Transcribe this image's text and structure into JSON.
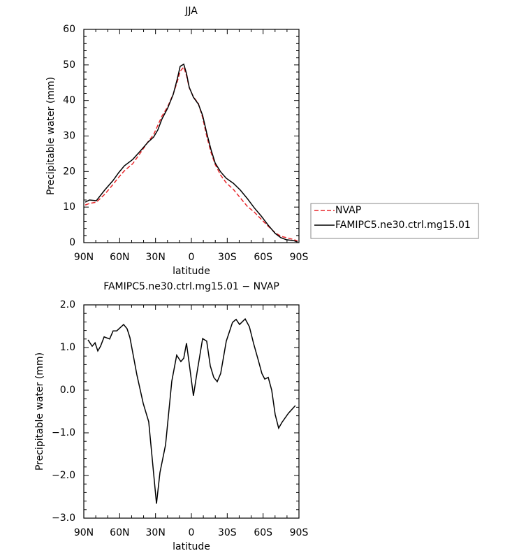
{
  "chart_data": [
    {
      "type": "line",
      "title": "JJA",
      "xlabel": "latitude",
      "ylabel": "Precipitable water (mm)",
      "x": [
        88.8,
        85.3,
        79.5,
        72.5,
        65.5,
        60.8,
        56.1,
        49.1,
        43.2,
        36.2,
        31.6,
        28.1,
        24.6,
        19.9,
        15.2,
        11.7,
        9.4,
        6.4,
        4.1,
        1.8,
        -1.7,
        -5.8,
        -9.4,
        -12.8,
        -16.4,
        -19.9,
        -24.5,
        -29.2,
        -35.1,
        -40.9,
        -46.8,
        -52.6,
        -58.4,
        -64.3,
        -70.1,
        -74.8,
        -79.5,
        -85.3,
        -88.8
      ],
      "series": [
        {
          "name": "NVAP",
          "color": "#e8262a",
          "dash": "dashed",
          "values": [
            10.6,
            11.0,
            11.4,
            13.6,
            16.4,
            18.4,
            20.2,
            22.2,
            25.0,
            28.4,
            30.4,
            33.0,
            35.6,
            38.2,
            41.8,
            45.4,
            48.2,
            49.4,
            47.0,
            43.6,
            41.0,
            39.2,
            35.2,
            30.0,
            25.4,
            22.0,
            19.0,
            16.8,
            15.0,
            12.6,
            10.2,
            8.6,
            6.6,
            4.6,
            2.8,
            1.8,
            1.4,
            0.9,
            0.5
          ]
        },
        {
          "name": "FAMIPC5.ne30.ctrl.mg15.01",
          "color": "#000000",
          "dash": "solid",
          "values": [
            11.4,
            12.0,
            11.8,
            14.8,
            17.5,
            19.7,
            21.6,
            23.4,
            25.6,
            28.3,
            29.7,
            31.7,
            34.8,
            37.8,
            41.7,
            46.2,
            49.6,
            50.2,
            47.6,
            43.7,
            40.9,
            39.0,
            35.8,
            30.9,
            26.2,
            22.4,
            19.9,
            18.1,
            16.7,
            14.8,
            12.4,
            9.8,
            7.5,
            4.9,
            2.6,
            1.4,
            0.8,
            0.6,
            0.2
          ]
        }
      ],
      "xlim": [
        90,
        -90
      ],
      "xticks": [
        {
          "value": 90,
          "label": "90N"
        },
        {
          "value": 60,
          "label": "60N"
        },
        {
          "value": 30,
          "label": "30N"
        },
        0,
        {
          "value": -30,
          "label": "30S"
        },
        {
          "value": -60,
          "label": "60S"
        },
        {
          "value": -90,
          "label": "90S"
        }
      ],
      "ylim": [
        0,
        60
      ],
      "yticks": [
        0,
        10,
        20,
        30,
        40,
        50,
        60
      ],
      "grid": false,
      "legend": "outside right"
    },
    {
      "type": "line",
      "title": "FAMIPC5.ne30.ctrl.mg15.01  −  NVAP",
      "xlabel": "latitude",
      "ylabel": "Precipitable water (mm)",
      "x": [
        86.5,
        83,
        80.6,
        78.3,
        76,
        73,
        68.4,
        65.5,
        62.5,
        56.7,
        53.8,
        51.4,
        45.6,
        40.3,
        35.7,
        29.2,
        26.3,
        21.6,
        16.4,
        12.3,
        8.8,
        6.4,
        4.1,
        1.8,
        -1.7,
        -4.7,
        -9.4,
        -12.8,
        -15.8,
        -18.7,
        -21.6,
        -24.5,
        -29.2,
        -34.4,
        -37.4,
        -40.3,
        -45,
        -48.5,
        -52,
        -56,
        -59,
        -61.4,
        -64.3,
        -67.2,
        -70.1,
        -73,
        -75.9,
        -81.2,
        -87
      ],
      "series": [
        {
          "name": "FAMIPC5.ne30.ctrl.mg15.01 - NVAP",
          "color": "#000000",
          "dash": "solid",
          "values": [
            1.18,
            1.03,
            1.11,
            0.92,
            1.03,
            1.25,
            1.2,
            1.39,
            1.39,
            1.54,
            1.44,
            1.23,
            0.36,
            -0.31,
            -0.74,
            -2.66,
            -1.93,
            -1.28,
            0.21,
            0.82,
            0.67,
            0.75,
            1.1,
            0.62,
            -0.13,
            0.41,
            1.21,
            1.15,
            0.57,
            0.3,
            0.2,
            0.39,
            1.15,
            1.59,
            1.66,
            1.54,
            1.67,
            1.49,
            1.1,
            0.7,
            0.39,
            0.26,
            0.3,
            0.0,
            -0.57,
            -0.89,
            -0.75,
            -0.54,
            -0.36
          ]
        }
      ],
      "xlim": [
        90,
        -90
      ],
      "xticks": [
        {
          "value": 90,
          "label": "90N"
        },
        {
          "value": 60,
          "label": "60N"
        },
        {
          "value": 30,
          "label": "30N"
        },
        0,
        {
          "value": -30,
          "label": "30S"
        },
        {
          "value": -60,
          "label": "60S"
        },
        {
          "value": -90,
          "label": "90S"
        }
      ],
      "ylim": [
        -3,
        2
      ],
      "yticks": [
        {
          "value": -3,
          "label": "−3.0"
        },
        {
          "value": -2,
          "label": "−2.0"
        },
        {
          "value": -1,
          "label": "−1.0"
        },
        {
          "value": 0,
          "label": "0.0"
        },
        {
          "value": 1,
          "label": "1.0"
        },
        {
          "value": 2,
          "label": "2.0"
        }
      ],
      "grid": false
    }
  ]
}
